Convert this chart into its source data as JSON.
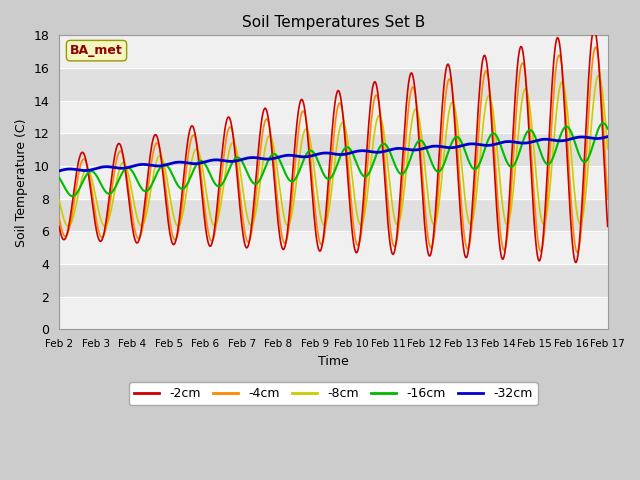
{
  "title": "Soil Temperatures Set B",
  "xlabel": "Time",
  "ylabel": "Soil Temperature (C)",
  "ylim": [
    0,
    18
  ],
  "yticks": [
    0,
    2,
    4,
    6,
    8,
    10,
    12,
    14,
    16,
    18
  ],
  "label_box": "BA_met",
  "series_colors": {
    "-2cm": "#cc0000",
    "-4cm": "#ff8800",
    "-8cm": "#cccc00",
    "-16cm": "#00bb00",
    "-32cm": "#0000cc"
  },
  "x_tick_labels": [
    "Feb 2",
    "Feb 3",
    "Feb 4",
    "Feb 5",
    "Feb 6",
    "Feb 7",
    "Feb 8",
    "Feb 9",
    "Feb 10",
    "Feb 11",
    "Feb 12",
    "Feb 13",
    "Feb 14",
    "Feb 15",
    "Feb 16",
    "Feb 17"
  ],
  "figsize": [
    6.4,
    4.8
  ],
  "dpi": 100,
  "n_days": 15,
  "n_pts_per_day": 48
}
